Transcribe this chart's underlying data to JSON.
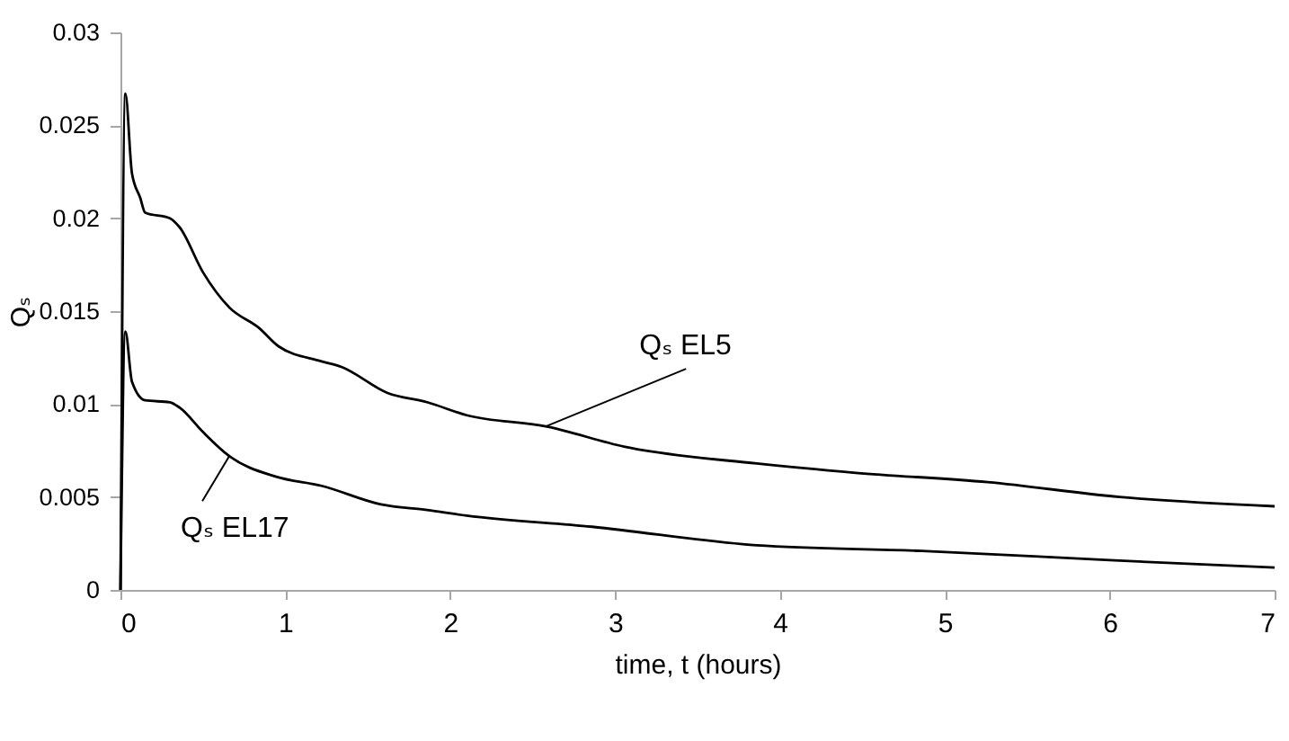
{
  "chart_data": {
    "type": "line",
    "xlabel": "time, t (hours)",
    "ylabel": "Qₛ",
    "xlim": [
      0,
      7
    ],
    "xticks": [
      0,
      1,
      2,
      3,
      4,
      5,
      6,
      7
    ],
    "ylim": [
      0,
      0.03
    ],
    "yticks": [
      0,
      0.005,
      0.01,
      0.015,
      0.02,
      0.025,
      0.03
    ],
    "grid": false,
    "series": [
      {
        "name": "Qₛ EL5",
        "color": "#000000",
        "x": [
          0,
          0.03,
          0.07,
          0.12,
          0.15,
          0.3,
          0.36,
          0.5,
          0.66,
          0.84,
          0.96,
          1.22,
          1.34,
          1.62,
          1.86,
          2.1,
          2.58,
          3.06,
          3.86,
          4.46,
          5.26,
          6.06,
          7
        ],
        "values": [
          0,
          0.0267,
          0.0224,
          0.0211,
          0.0203,
          0.02,
          0.0195,
          0.0171,
          0.0152,
          0.0141,
          0.0131,
          0.0123,
          0.012,
          0.0106,
          0.0101,
          0.0094,
          0.0088,
          0.0077,
          0.0068,
          0.0063,
          0.0058,
          0.005,
          0.0045
        ]
      },
      {
        "name": "Qₛ EL17",
        "color": "#000000",
        "x": [
          0,
          0.03,
          0.07,
          0.15,
          0.3,
          0.36,
          0.5,
          0.66,
          0.94,
          1.22,
          1.58,
          1.86,
          2.1,
          2.86,
          3.86,
          4.86,
          6,
          7
        ],
        "values": [
          0,
          0.0139,
          0.0112,
          0.0102,
          0.0101,
          0.0098,
          0.0085,
          0.0072,
          0.0061,
          0.0056,
          0.0046,
          0.0043,
          0.004,
          0.0034,
          0.0024,
          0.0021,
          0.0016,
          0.0012
        ]
      }
    ]
  }
}
